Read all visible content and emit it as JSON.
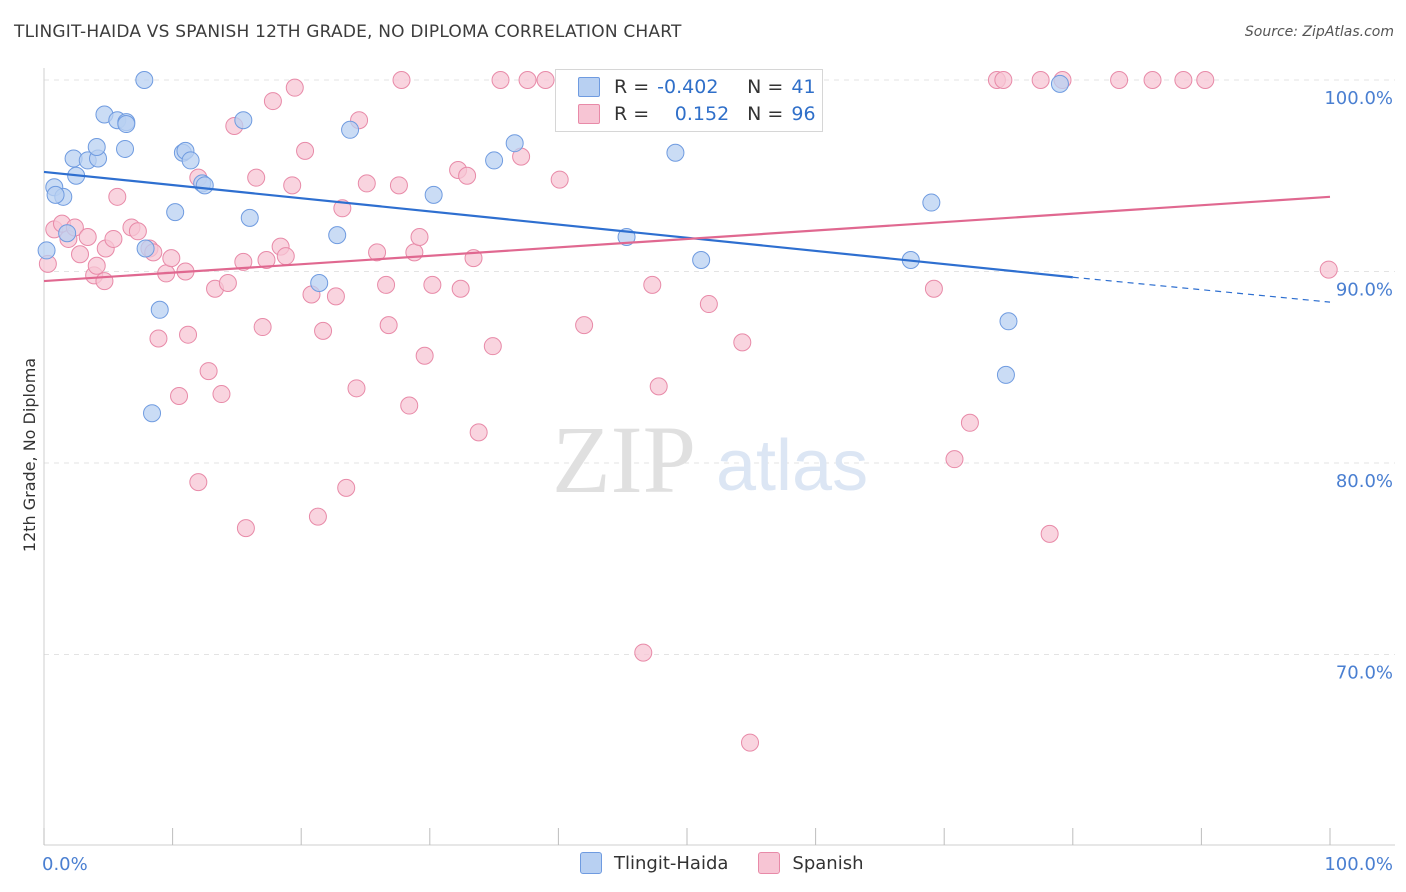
{
  "title": "TLINGIT-HAIDA VS SPANISH 12TH GRADE, NO DIPLOMA CORRELATION CHART",
  "source": "Source: ZipAtlas.com",
  "colors": {
    "blue_fill": "#b8d0f2",
    "blue_stroke": "#6f9be0",
    "blue_line": "#2e6fd0",
    "pink_fill": "#f7c5d4",
    "pink_stroke": "#e88aa8",
    "pink_line": "#e06890",
    "axis_label": "#4a7fd1",
    "grid": "#e3e3e3"
  },
  "legend": {
    "rows": [
      {
        "r_label": "R =",
        "r_value": "-0.402",
        "n_label": "N =",
        "n_value": "41",
        "color": "#b8d0f2"
      },
      {
        "r_label": "R =",
        "r_value": "0.152",
        "n_label": "N =",
        "n_value": "96",
        "color": "#f7c5d4"
      }
    ]
  },
  "bottom_legend": [
    "Tlingit-Haida",
    "Spanish"
  ],
  "watermark": {
    "zip": "ZIP",
    "atlas": "atlas"
  },
  "chart_data": {
    "type": "scatter",
    "xlabel": "",
    "ylabel": "12th Grade, No Diploma",
    "x_tick_labels": [
      "0.0%",
      "100.0%"
    ],
    "y_tick_labels": [
      "100.0%",
      "90.0%",
      "80.0%",
      "70.0%"
    ],
    "y_tick_values": [
      100,
      90,
      80,
      70
    ],
    "xlim": [
      0,
      100
    ],
    "ylim": [
      60,
      102
    ],
    "grid": true,
    "series": [
      {
        "name": "Tlingit-Haida",
        "points": [
          [
            0.2,
            91.1
          ],
          [
            0.8,
            94.4
          ],
          [
            1.5,
            93.9
          ],
          [
            1.8,
            92.0
          ],
          [
            2.3,
            95.9
          ],
          [
            2.5,
            95.0
          ],
          [
            0.9,
            94.0
          ],
          [
            3.4,
            95.8
          ],
          [
            4.2,
            95.9
          ],
          [
            4.1,
            96.5
          ],
          [
            4.7,
            98.2
          ],
          [
            5.7,
            97.9
          ],
          [
            6.4,
            97.8
          ],
          [
            6.4,
            97.7
          ],
          [
            6.3,
            96.4
          ],
          [
            7.8,
            100.0
          ],
          [
            7.9,
            91.2
          ],
          [
            8.4,
            82.6
          ],
          [
            9.0,
            88.0
          ],
          [
            10.2,
            93.1
          ],
          [
            10.8,
            96.2
          ],
          [
            11.0,
            96.3
          ],
          [
            11.4,
            95.8
          ],
          [
            12.3,
            94.6
          ],
          [
            12.5,
            94.5
          ],
          [
            15.5,
            97.9
          ],
          [
            16.0,
            92.8
          ],
          [
            21.4,
            89.4
          ],
          [
            22.8,
            91.9
          ],
          [
            23.8,
            97.4
          ],
          [
            30.3,
            94.0
          ],
          [
            35.0,
            95.8
          ],
          [
            36.6,
            96.7
          ],
          [
            45.3,
            91.8
          ],
          [
            49.1,
            96.2
          ],
          [
            51.1,
            90.6
          ],
          [
            67.4,
            90.6
          ],
          [
            69.0,
            93.6
          ],
          [
            75.0,
            87.4
          ],
          [
            74.8,
            84.6
          ],
          [
            79.0,
            99.8
          ]
        ],
        "trend": {
          "x": [
            0,
            80
          ],
          "y": [
            95.2,
            89.7
          ]
        },
        "trend_dashed": {
          "x": [
            80,
            100
          ],
          "y": [
            89.7,
            88.4
          ]
        }
      },
      {
        "name": "Spanish",
        "points": [
          [
            0.3,
            90.4
          ],
          [
            0.8,
            92.2
          ],
          [
            1.4,
            92.5
          ],
          [
            1.9,
            91.7
          ],
          [
            2.4,
            92.3
          ],
          [
            2.8,
            90.9
          ],
          [
            3.4,
            91.8
          ],
          [
            3.9,
            89.8
          ],
          [
            4.1,
            90.3
          ],
          [
            4.7,
            89.5
          ],
          [
            4.8,
            91.2
          ],
          [
            5.4,
            91.7
          ],
          [
            5.7,
            93.9
          ],
          [
            6.8,
            92.3
          ],
          [
            7.3,
            92.1
          ],
          [
            8.2,
            91.2
          ],
          [
            8.5,
            91.0
          ],
          [
            8.9,
            86.5
          ],
          [
            9.5,
            89.9
          ],
          [
            9.9,
            90.7
          ],
          [
            10.5,
            83.5
          ],
          [
            11.0,
            90.0
          ],
          [
            11.2,
            86.7
          ],
          [
            12.0,
            94.9
          ],
          [
            12.0,
            79.0
          ],
          [
            12.8,
            84.8
          ],
          [
            13.3,
            89.1
          ],
          [
            13.8,
            83.6
          ],
          [
            14.3,
            89.4
          ],
          [
            14.8,
            97.6
          ],
          [
            15.5,
            90.5
          ],
          [
            15.7,
            76.6
          ],
          [
            16.5,
            94.9
          ],
          [
            17.0,
            87.1
          ],
          [
            17.3,
            90.6
          ],
          [
            17.8,
            98.9
          ],
          [
            18.4,
            91.3
          ],
          [
            18.8,
            90.8
          ],
          [
            19.3,
            94.5
          ],
          [
            19.5,
            99.6
          ],
          [
            20.3,
            96.3
          ],
          [
            20.8,
            88.8
          ],
          [
            21.3,
            77.2
          ],
          [
            21.7,
            86.9
          ],
          [
            22.7,
            88.7
          ],
          [
            23.2,
            93.3
          ],
          [
            23.5,
            78.7
          ],
          [
            24.3,
            83.9
          ],
          [
            24.5,
            97.9
          ],
          [
            25.1,
            94.6
          ],
          [
            25.9,
            91.0
          ],
          [
            26.6,
            89.3
          ],
          [
            26.8,
            87.2
          ],
          [
            27.6,
            94.5
          ],
          [
            27.8,
            100.0
          ],
          [
            28.4,
            83.0
          ],
          [
            28.8,
            91.0
          ],
          [
            29.2,
            91.8
          ],
          [
            29.6,
            85.6
          ],
          [
            30.2,
            89.3
          ],
          [
            32.2,
            95.3
          ],
          [
            32.4,
            89.1
          ],
          [
            32.9,
            95.0
          ],
          [
            33.4,
            90.7
          ],
          [
            33.8,
            81.6
          ],
          [
            34.9,
            86.1
          ],
          [
            35.5,
            100.0
          ],
          [
            37.1,
            96.0
          ],
          [
            37.6,
            100.0
          ],
          [
            39.0,
            100.0
          ],
          [
            40.1,
            94.8
          ],
          [
            42.0,
            87.2
          ],
          [
            46.6,
            70.1
          ],
          [
            47.3,
            89.3
          ],
          [
            47.8,
            84.0
          ],
          [
            49.9,
            100.0
          ],
          [
            51.7,
            88.3
          ],
          [
            51.8,
            100.0
          ],
          [
            54.3,
            86.3
          ],
          [
            54.9,
            65.4
          ],
          [
            55.1,
            100.0
          ],
          [
            59.7,
            100.0
          ],
          [
            69.2,
            89.1
          ],
          [
            70.8,
            80.2
          ],
          [
            72.0,
            82.1
          ],
          [
            74.1,
            100.0
          ],
          [
            74.6,
            100.0
          ],
          [
            78.2,
            76.3
          ],
          [
            79.2,
            100.0
          ],
          [
            83.6,
            100.0
          ],
          [
            86.2,
            100.0
          ],
          [
            88.6,
            100.0
          ],
          [
            90.3,
            100.0
          ],
          [
            99.9,
            90.1
          ],
          [
            77.5,
            100.0
          ],
          [
            54.0,
            100.0
          ]
        ],
        "trend": {
          "x": [
            0,
            100
          ],
          "y": [
            89.5,
            93.9
          ]
        }
      }
    ]
  }
}
